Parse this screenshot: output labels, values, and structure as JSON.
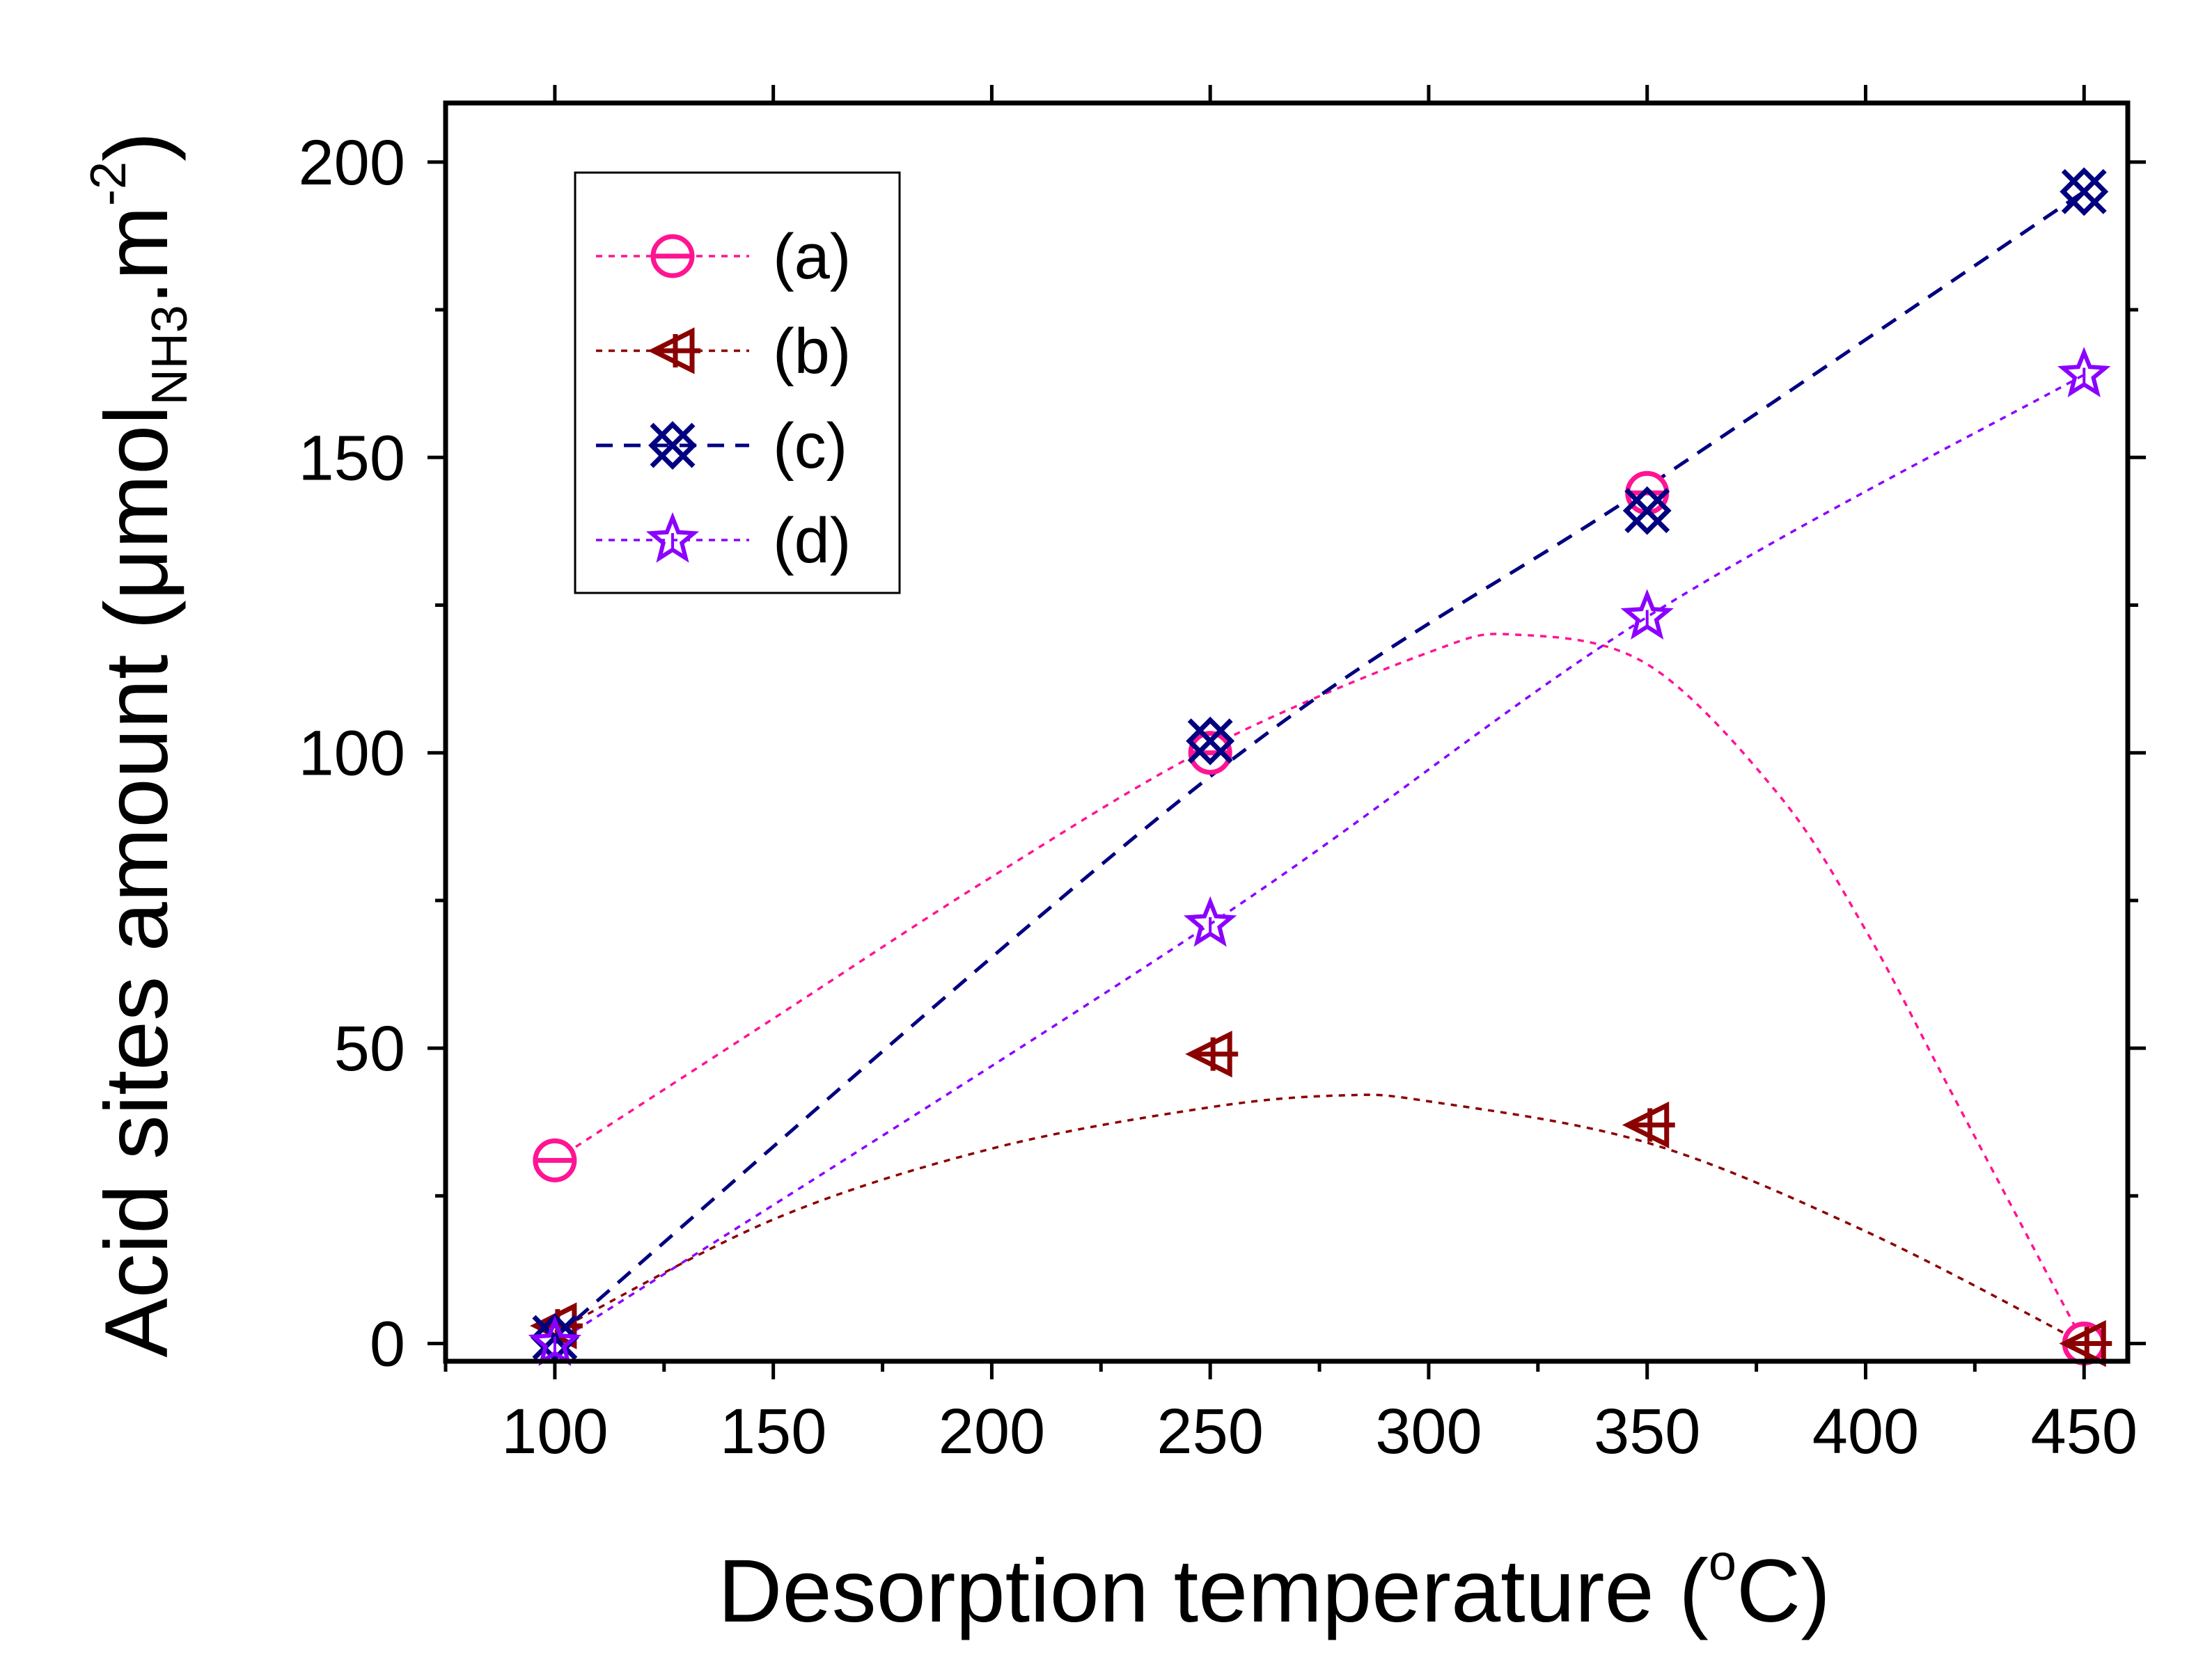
{
  "chart_data": {
    "type": "scatter",
    "title": "",
    "xlabel": {
      "prefix": "Desorption temperature (",
      "sup": "o",
      "suffix": "C)"
    },
    "ylabel": {
      "prefix": "Acid sites amount (μmol",
      "sub": "NH3",
      "middle": ".m",
      "sup": "-2",
      "suffix": ")"
    },
    "xlim": [
      75,
      460
    ],
    "ylim": [
      -3,
      210
    ],
    "x_ticks": [
      100,
      150,
      200,
      250,
      300,
      350,
      400,
      450
    ],
    "y_ticks": [
      0,
      50,
      100,
      150,
      200
    ],
    "legend_position": "top-left",
    "series": [
      {
        "name": "(a)",
        "marker": "circle-minus",
        "color": "#ff1493",
        "line_style": "dotted",
        "x": [
          100,
          250,
          350,
          450
        ],
        "y": [
          31,
          100,
          144,
          0
        ],
        "fit_curve": {
          "x": [
            100,
            150,
            200,
            250,
            300,
            320,
            350,
            380,
            400,
            420,
            450
          ],
          "y": [
            31,
            55,
            79,
            101,
            117,
            120,
            115,
            93,
            70,
            42,
            0
          ]
        }
      },
      {
        "name": "(b)",
        "marker": "triangle-left-plus",
        "color": "#8b0000",
        "line_style": "dotted",
        "x": [
          100,
          250,
          350,
          450
        ],
        "y": [
          3,
          49,
          37,
          0
        ],
        "fit_curve": {
          "x": [
            100,
            150,
            200,
            250,
            280,
            300,
            350,
            400,
            450
          ],
          "y": [
            2,
            21,
            33,
            40,
            42,
            41,
            34,
            19,
            0
          ]
        }
      },
      {
        "name": "(c)",
        "marker": "x-circle",
        "color": "#000080",
        "line_style": "dashed",
        "x": [
          100,
          250,
          350,
          450
        ],
        "y": [
          1,
          102,
          141,
          195
        ],
        "fit_curve": {
          "x": [
            100,
            250,
            350,
            450
          ],
          "y": [
            1,
            96,
            145,
            195
          ]
        }
      },
      {
        "name": "(d)",
        "marker": "star",
        "color": "#8b00ff",
        "line_style": "dotted",
        "x": [
          100,
          250,
          350,
          450
        ],
        "y": [
          0,
          71,
          123,
          164
        ],
        "fit_curve": {
          "x": [
            100,
            250,
            350,
            450
          ],
          "y": [
            0,
            71,
            123,
            164
          ]
        }
      }
    ]
  }
}
